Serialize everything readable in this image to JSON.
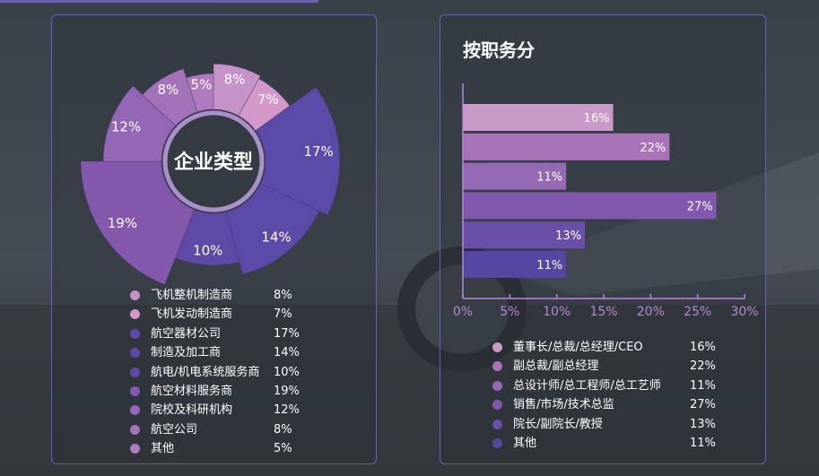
{
  "colors": {
    "panel_border": "#6a5fb5",
    "axis": "#b48ad8",
    "text": "#ffffff"
  },
  "chart_data": [
    {
      "type": "pie",
      "variant": "nightingale-rose-donut",
      "center_label": "企业类型",
      "categories": [
        "飞机整机制造商",
        "飞机发动制造商",
        "航空器材公司",
        "制造及加工商",
        "航电/机电系统服务商",
        "航空材料服务商",
        "院校及科研机构",
        "航空公司",
        "其他"
      ],
      "values": [
        8,
        7,
        17,
        14,
        10,
        19,
        12,
        8,
        5
      ],
      "value_labels": [
        "8%",
        "7%",
        "17%",
        "14%",
        "10%",
        "19%",
        "12%",
        "8%",
        "5%"
      ],
      "colors": [
        "#c593c6",
        "#d497c9",
        "#5b4aa8",
        "#5b4aa8",
        "#5e4aa6",
        "#8458ad",
        "#9466b6",
        "#a373b9",
        "#b07bbd"
      ],
      "legend_placement": "bottom"
    },
    {
      "type": "bar",
      "orientation": "horizontal",
      "title": "按职务分",
      "categories": [
        "董事长/总裁/总经理/CEO",
        "副总裁/副总经理",
        "总设计师/总工程师/总工艺师",
        "销售/市场/技术总监",
        "院长/副院长/教授",
        "其他"
      ],
      "values": [
        16,
        22,
        11,
        27,
        13,
        11
      ],
      "value_labels": [
        "16%",
        "22%",
        "11%",
        "27%",
        "13%",
        "11%"
      ],
      "colors": [
        "#c99ac8",
        "#a873b9",
        "#9469b6",
        "#8158ad",
        "#6a4fa8",
        "#57469f"
      ],
      "xlim": [
        0,
        30
      ],
      "xticks": [
        "0%",
        "5%",
        "10%",
        "15%",
        "20%",
        "25%",
        "30%"
      ],
      "grid": false,
      "legend_placement": "bottom"
    }
  ]
}
